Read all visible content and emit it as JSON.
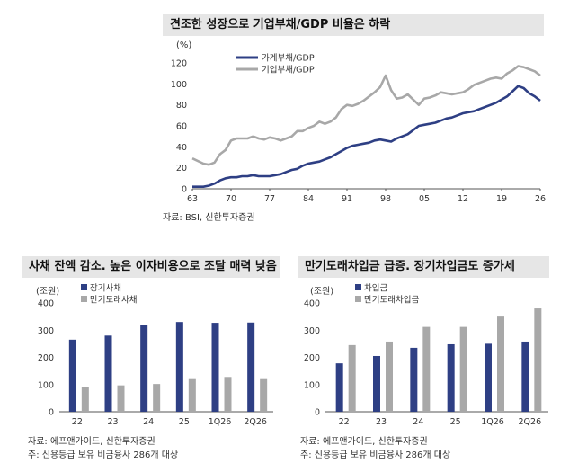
{
  "top_panel": {
    "title": "견조한 성장으로 기업부채/GDP 비율은 하락",
    "unit": "(%)",
    "source": "자료: BSI, 신한투자증권"
  },
  "bottom_left": {
    "title": "사채 잔액 감소. 높은 이자비용으로 조달 매력 낮음",
    "unit": "(조원)",
    "source": "자료: 에프앤가이드, 신한투자증권",
    "note": "주: 신용등급 보유 비금융사 286개 대상"
  },
  "bottom_right": {
    "title": "만기도래차입금 급증. 장기차입금도 증가세",
    "unit": "(조원)",
    "source": "자료: 에프앤가이드, 신한투자증권",
    "note": "주: 신용등급 보유 비금융사 286개 대상"
  },
  "colors": {
    "navy": "#2e3f84",
    "gray": "#a8a8a8",
    "axis": "#555555"
  },
  "chart_data": [
    {
      "type": "line",
      "x_ticks": [
        "63",
        "70",
        "77",
        "84",
        "91",
        "98",
        "05",
        "12",
        "19",
        "26"
      ],
      "x": [
        1963,
        1965,
        1966,
        1967,
        1968,
        1969,
        1970,
        1971,
        1972,
        1973,
        1974,
        1975,
        1976,
        1977,
        1978,
        1979,
        1980,
        1981,
        1982,
        1983,
        1984,
        1985,
        1986,
        1987,
        1988,
        1989,
        1990,
        1991,
        1992,
        1993,
        1994,
        1995,
        1996,
        1997,
        1998,
        1999,
        2000,
        2001,
        2002,
        2003,
        2004,
        2005,
        2006,
        2007,
        2008,
        2009,
        2010,
        2011,
        2012,
        2013,
        2014,
        2015,
        2016,
        2017,
        2018,
        2019,
        2020,
        2021,
        2022,
        2023,
        2024,
        2025,
        2026
      ],
      "ylim": [
        0,
        120
      ],
      "y_ticks": [
        0,
        20,
        40,
        60,
        80,
        100,
        120
      ],
      "series": [
        {
          "name": "가계부채/GDP",
          "color": "#2e3f84",
          "values": [
            2,
            2,
            3,
            5,
            8,
            10,
            11,
            11,
            12,
            12,
            13,
            12,
            12,
            12,
            13,
            14,
            16,
            18,
            19,
            22,
            24,
            25,
            26,
            28,
            30,
            33,
            36,
            39,
            41,
            42,
            43,
            44,
            46,
            47,
            46,
            45,
            48,
            50,
            52,
            56,
            60,
            61,
            62,
            63,
            65,
            67,
            68,
            70,
            72,
            73,
            74,
            76,
            78,
            80,
            82,
            85,
            88,
            93,
            98,
            96,
            91,
            88,
            84
          ]
        },
        {
          "name": "기업부채/GDP",
          "color": "#a8a8a8",
          "values": [
            29,
            24,
            23,
            25,
            33,
            37,
            46,
            48,
            48,
            48,
            50,
            48,
            47,
            49,
            48,
            46,
            48,
            50,
            55,
            55,
            58,
            60,
            64,
            62,
            64,
            68,
            76,
            80,
            79,
            81,
            84,
            88,
            92,
            97,
            108,
            94,
            86,
            87,
            90,
            85,
            80,
            86,
            87,
            89,
            92,
            91,
            90,
            91,
            92,
            95,
            99,
            101,
            103,
            105,
            106,
            105,
            110,
            113,
            117,
            116,
            114,
            112,
            108
          ]
        }
      ]
    },
    {
      "type": "bar",
      "categories": [
        "22",
        "23",
        "24",
        "25",
        "1Q26",
        "2Q26"
      ],
      "ylim": [
        0,
        400
      ],
      "y_ticks": [
        0,
        100,
        200,
        300,
        400
      ],
      "series": [
        {
          "name": "장기사채",
          "color": "#2e3f84",
          "values": [
            265,
            280,
            318,
            330,
            327,
            328
          ]
        },
        {
          "name": "만기도래사채",
          "color": "#a8a8a8",
          "values": [
            90,
            97,
            102,
            120,
            128,
            120
          ]
        }
      ]
    },
    {
      "type": "bar",
      "categories": [
        "22",
        "23",
        "24",
        "25",
        "1Q26",
        "2Q26"
      ],
      "ylim": [
        0,
        400
      ],
      "y_ticks": [
        0,
        100,
        200,
        300,
        400
      ],
      "series": [
        {
          "name": "차입금",
          "color": "#2e3f84",
          "values": [
            178,
            205,
            235,
            248,
            250,
            258
          ]
        },
        {
          "name": "만기도래차입금",
          "color": "#a8a8a8",
          "values": [
            245,
            258,
            312,
            312,
            350,
            380
          ]
        }
      ]
    }
  ]
}
